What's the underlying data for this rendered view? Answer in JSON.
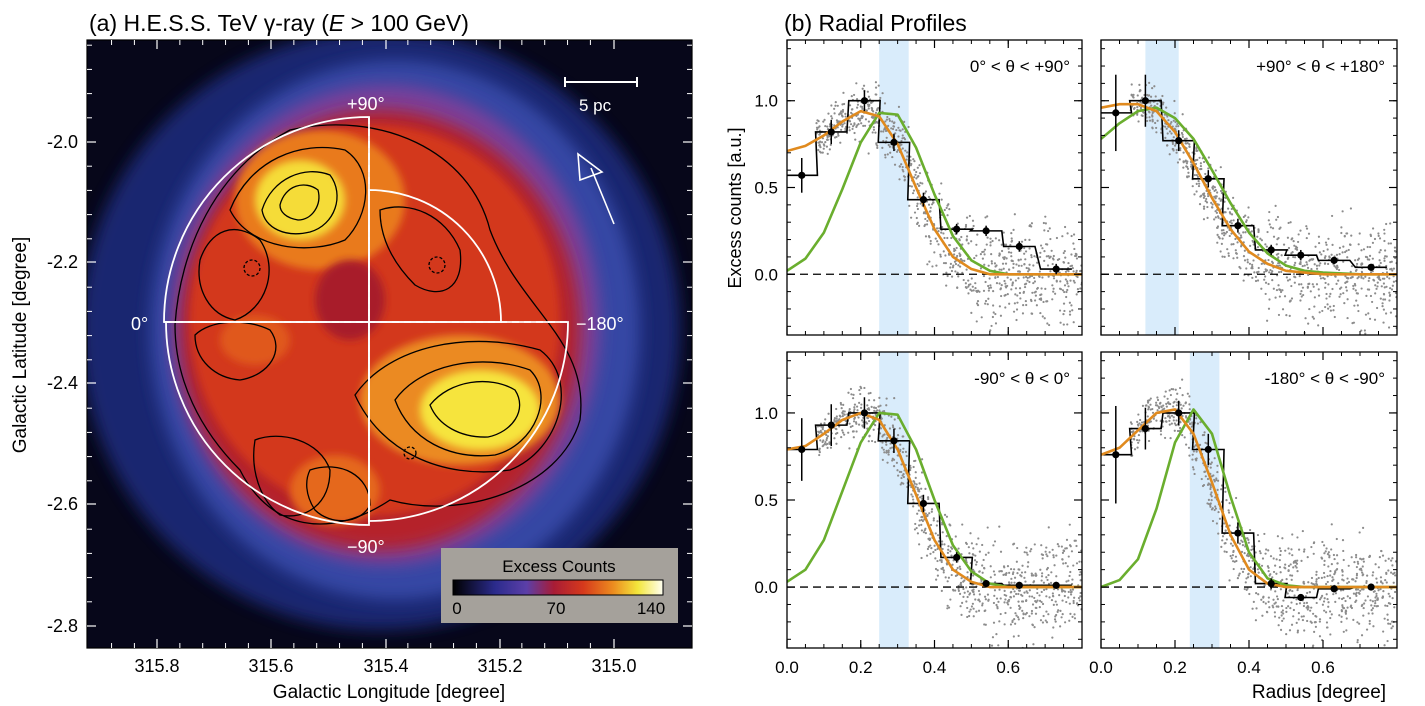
{
  "panel_a": {
    "title": "(a) H.E.S.S. TeV γ-ray (",
    "title_var": "E",
    "title_rest": " > 100 GeV)",
    "xlabel": "Galactic Longitude [degree]",
    "ylabel": "Galactic Latitude [degree]",
    "x_ticks": [
      "315.8",
      "315.6",
      "315.4",
      "315.2",
      "315.0"
    ],
    "y_ticks": [
      "-2.0",
      "-2.2",
      "-2.4",
      "-2.6",
      "-2.8"
    ],
    "angle_labels": {
      "top": "+90°",
      "left": "0°",
      "right": "−180°",
      "bottom": "−90°"
    },
    "scale_bar_label": "5 pc",
    "colorbar": {
      "title": "Excess Counts",
      "ticks": [
        "0",
        "70",
        "140"
      ]
    }
  },
  "panel_b": {
    "title": "(b) Radial Profiles",
    "ylabel": "Excess counts [a.u.]",
    "xlabel": "Radius [degree]",
    "y_ticks": [
      "0.0",
      "0.5",
      "1.0"
    ],
    "x_ticks": [
      "0.0",
      "0.2",
      "0.4",
      "0.6"
    ]
  },
  "colors": {
    "histogram": "#000000",
    "fit_orange": "#e08a1e",
    "model_green": "#6aae2e",
    "band": "#d9ecfb",
    "scatter": "#8c8c8c"
  },
  "chart_data": [
    {
      "type": "line",
      "label": "0° < θ < +90°",
      "xlim": [
        0,
        0.8
      ],
      "ylim": [
        -0.35,
        1.35
      ],
      "band": [
        0.25,
        0.33
      ],
      "x": [
        0.04,
        0.12,
        0.21,
        0.29,
        0.37,
        0.46,
        0.54,
        0.63,
        0.73
      ],
      "y": [
        0.57,
        0.82,
        1.0,
        0.76,
        0.43,
        0.26,
        0.25,
        0.16,
        0.03
      ],
      "yerr": [
        0.1,
        0.07,
        0.06,
        0.05,
        0.04,
        0.03,
        0.03,
        0.03,
        0.03
      ],
      "orange": {
        "x": [
          0,
          0.05,
          0.1,
          0.15,
          0.2,
          0.25,
          0.3,
          0.35,
          0.4,
          0.45,
          0.5,
          0.55,
          0.6,
          0.7,
          0.8
        ],
        "y": [
          0.71,
          0.74,
          0.8,
          0.88,
          0.94,
          0.91,
          0.75,
          0.5,
          0.26,
          0.1,
          0.03,
          0.0,
          0.0,
          0.0,
          0.0
        ]
      },
      "green": {
        "x": [
          0,
          0.05,
          0.1,
          0.15,
          0.2,
          0.25,
          0.3,
          0.35,
          0.4,
          0.45,
          0.5,
          0.55,
          0.6,
          0.7,
          0.8
        ],
        "y": [
          0.02,
          0.09,
          0.24,
          0.49,
          0.76,
          0.93,
          0.92,
          0.73,
          0.46,
          0.22,
          0.08,
          0.02,
          0.0,
          0.0,
          0.0
        ]
      }
    },
    {
      "type": "line",
      "label": "+90° < θ < +180°",
      "xlim": [
        0,
        0.8
      ],
      "ylim": [
        -0.35,
        1.35
      ],
      "band": [
        0.12,
        0.21
      ],
      "x": [
        0.04,
        0.12,
        0.21,
        0.29,
        0.37,
        0.46,
        0.54,
        0.63,
        0.73
      ],
      "y": [
        0.93,
        1.0,
        0.77,
        0.55,
        0.28,
        0.14,
        0.11,
        0.08,
        0.04
      ],
      "yerr": [
        0.22,
        0.15,
        0.06,
        0.05,
        0.04,
        0.03,
        0.03,
        0.02,
        0.02
      ],
      "orange": {
        "x": [
          0,
          0.05,
          0.1,
          0.15,
          0.2,
          0.25,
          0.3,
          0.35,
          0.4,
          0.45,
          0.5,
          0.55,
          0.6,
          0.7,
          0.8
        ],
        "y": [
          0.96,
          0.98,
          0.98,
          0.94,
          0.82,
          0.64,
          0.44,
          0.26,
          0.13,
          0.06,
          0.02,
          0.01,
          0.0,
          0.0,
          0.0
        ]
      },
      "green": {
        "x": [
          0,
          0.05,
          0.1,
          0.15,
          0.2,
          0.25,
          0.3,
          0.35,
          0.4,
          0.45,
          0.5,
          0.55,
          0.6,
          0.7,
          0.8
        ],
        "y": [
          0.78,
          0.87,
          0.94,
          0.96,
          0.9,
          0.78,
          0.6,
          0.41,
          0.24,
          0.12,
          0.05,
          0.02,
          0.01,
          0.0,
          0.0
        ]
      }
    },
    {
      "type": "line",
      "label": "-90° < θ < 0°",
      "xlim": [
        0,
        0.8
      ],
      "ylim": [
        -0.35,
        1.35
      ],
      "band": [
        0.25,
        0.33
      ],
      "x": [
        0.04,
        0.12,
        0.21,
        0.29,
        0.37,
        0.46,
        0.54,
        0.63,
        0.73
      ],
      "y": [
        0.79,
        0.93,
        1.0,
        0.84,
        0.48,
        0.17,
        0.02,
        0.01,
        0.01
      ],
      "yerr": [
        0.18,
        0.12,
        0.09,
        0.07,
        0.05,
        0.03,
        0.02,
        0.02,
        0.02
      ],
      "orange": {
        "x": [
          0,
          0.05,
          0.1,
          0.15,
          0.2,
          0.25,
          0.3,
          0.35,
          0.4,
          0.45,
          0.5,
          0.55,
          0.6,
          0.7,
          0.8
        ],
        "y": [
          0.79,
          0.81,
          0.88,
          0.96,
          1.0,
          0.96,
          0.79,
          0.53,
          0.27,
          0.1,
          0.03,
          0.0,
          0.0,
          0.0,
          0.0
        ]
      },
      "green": {
        "x": [
          0,
          0.05,
          0.1,
          0.15,
          0.2,
          0.25,
          0.3,
          0.35,
          0.4,
          0.45,
          0.5,
          0.55,
          0.6,
          0.7,
          0.8
        ],
        "y": [
          0.03,
          0.1,
          0.27,
          0.55,
          0.83,
          1.0,
          0.99,
          0.79,
          0.5,
          0.24,
          0.09,
          0.02,
          0.0,
          0.0,
          0.0
        ]
      }
    },
    {
      "type": "line",
      "label": "-180° < θ < -90°",
      "xlim": [
        0,
        0.8
      ],
      "ylim": [
        -0.35,
        1.35
      ],
      "band": [
        0.24,
        0.32
      ],
      "x": [
        0.04,
        0.12,
        0.21,
        0.29,
        0.37,
        0.46,
        0.54,
        0.63,
        0.73
      ],
      "y": [
        0.76,
        0.91,
        1.0,
        0.79,
        0.31,
        0.02,
        -0.06,
        -0.01,
        0.0
      ],
      "yerr": [
        0.28,
        0.12,
        0.07,
        0.09,
        0.06,
        0.03,
        0.02,
        0.02,
        0.02
      ],
      "orange": {
        "x": [
          0,
          0.05,
          0.1,
          0.15,
          0.2,
          0.25,
          0.3,
          0.35,
          0.4,
          0.45,
          0.5,
          0.55,
          0.6,
          0.7,
          0.8
        ],
        "y": [
          0.76,
          0.8,
          0.9,
          1.0,
          1.02,
          0.88,
          0.6,
          0.3,
          0.1,
          0.02,
          0.0,
          0.0,
          0.0,
          0.0,
          0.0
        ]
      },
      "green": {
        "x": [
          0,
          0.05,
          0.1,
          0.15,
          0.2,
          0.25,
          0.3,
          0.35,
          0.4,
          0.45,
          0.5,
          0.55,
          0.6,
          0.7,
          0.8
        ],
        "y": [
          0.0,
          0.04,
          0.16,
          0.45,
          0.83,
          1.02,
          0.88,
          0.52,
          0.2,
          0.05,
          0.01,
          0.0,
          0.0,
          0.0,
          0.0
        ]
      }
    }
  ]
}
